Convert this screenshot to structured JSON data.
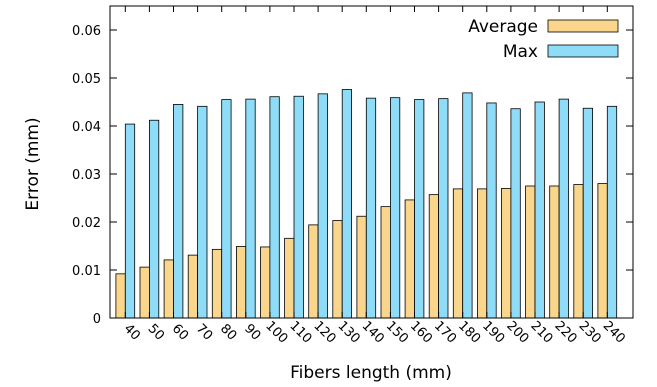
{
  "chart_data": {
    "type": "bar",
    "categories": [
      "40",
      "50",
      "60",
      "70",
      "80",
      "90",
      "100",
      "110",
      "120",
      "130",
      "140",
      "150",
      "160",
      "170",
      "180",
      "190",
      "200",
      "210",
      "220",
      "230",
      "240"
    ],
    "series": [
      {
        "name": "Average",
        "color": "#fad68c",
        "values": [
          0.0092,
          0.0106,
          0.0121,
          0.0131,
          0.0143,
          0.0149,
          0.0148,
          0.0166,
          0.0194,
          0.0203,
          0.0212,
          0.0232,
          0.0246,
          0.0257,
          0.0269,
          0.0269,
          0.027,
          0.0275,
          0.0275,
          0.0278,
          0.028
        ]
      },
      {
        "name": "Max",
        "color": "#8fdcf8",
        "values": [
          0.0404,
          0.0412,
          0.0445,
          0.0441,
          0.0455,
          0.0456,
          0.0461,
          0.0462,
          0.0467,
          0.0476,
          0.0458,
          0.0459,
          0.0455,
          0.0457,
          0.0469,
          0.0448,
          0.0436,
          0.045,
          0.0456,
          0.0437,
          0.0441
        ]
      }
    ],
    "xlabel": "Fibers length (mm)",
    "ylabel": "Error (mm)",
    "ylim": [
      0,
      0.065
    ],
    "yticks": [
      0,
      0.01,
      0.02,
      0.03,
      0.04,
      0.05,
      0.06
    ],
    "ytick_labels": [
      "0",
      "0.01",
      "0.02",
      "0.03",
      "0.04",
      "0.05",
      "0.06"
    ],
    "grid": false,
    "legend_position": "top-right"
  }
}
